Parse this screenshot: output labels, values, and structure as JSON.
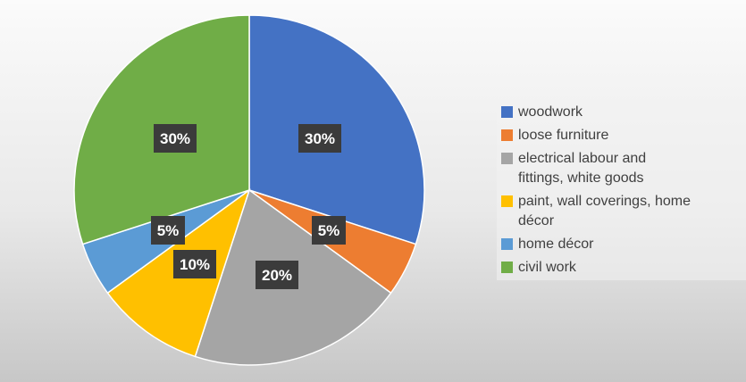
{
  "chart_data": {
    "type": "pie",
    "title": "",
    "categories": [
      "woodwork",
      "loose furniture",
      "electrical labour and fittings, white goods",
      "paint, wall coverings, home décor",
      "home décor",
      "civil work"
    ],
    "legend_lines": [
      [
        "woodwork"
      ],
      [
        "loose furniture"
      ],
      [
        "electrical labour and",
        "fittings, white goods"
      ],
      [
        "paint, wall coverings, home",
        "décor"
      ],
      [
        "home décor"
      ],
      [
        "civil work"
      ]
    ],
    "values": [
      30,
      5,
      20,
      10,
      5,
      30
    ],
    "data_labels": [
      "30%",
      "5%",
      "20%",
      "10%",
      "5%",
      "30%"
    ],
    "colors": [
      "#4472C4",
      "#ED7D31",
      "#A5A5A5",
      "#FFC000",
      "#5B9BD5",
      "#70AD47"
    ],
    "legend": "right",
    "start_angle": "12 o'clock",
    "direction": "clockwise"
  }
}
